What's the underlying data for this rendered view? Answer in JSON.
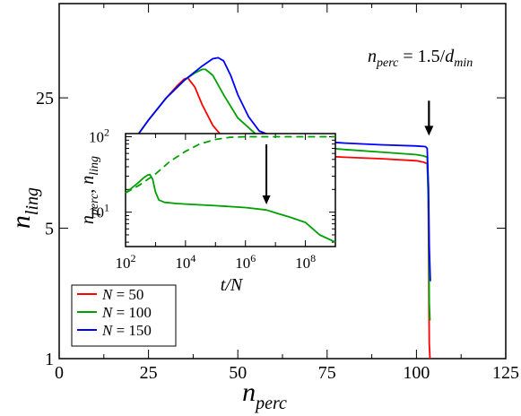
{
  "chart_data": [
    {
      "type": "line",
      "xlabel": "n_perc",
      "ylabel": "n_ling",
      "xlim": [
        0,
        125
      ],
      "ylim": [
        1,
        80
      ],
      "yscale": "log",
      "xticks": [
        0,
        25,
        50,
        75,
        100,
        125
      ],
      "yticks": [
        1,
        5,
        25
      ],
      "legend_position": "bottom-left",
      "annotation": {
        "text": "n_perc = 1.5/d_min",
        "points_to_x": 103.5,
        "points_to_y": 15.5
      },
      "series": [
        {
          "name": "N = 50",
          "color": "#ff0000",
          "x": [
            20,
            25,
            30,
            33,
            35,
            36,
            38,
            40,
            43,
            46,
            50,
            55,
            60,
            70,
            80,
            90,
            100,
            102,
            103,
            103.3,
            103.5,
            103.6,
            103.8
          ],
          "y": [
            14,
            19,
            25,
            29,
            31.5,
            32,
            28.5,
            23,
            17.8,
            15.2,
            14.0,
            13.2,
            12.7,
            12.3,
            12.0,
            11.8,
            11.5,
            11.3,
            11.1,
            8,
            2,
            1.2,
            1
          ]
        },
        {
          "name": "N = 100",
          "color": "#00a000",
          "x": [
            20,
            25,
            30,
            35,
            38,
            40,
            41,
            43,
            46,
            50,
            55,
            60,
            70,
            80,
            90,
            100,
            102,
            103,
            103.4,
            103.6,
            103.8
          ],
          "y": [
            14,
            19,
            25,
            31,
            34,
            35.5,
            35.5,
            33,
            26,
            19.5,
            16,
            14.6,
            13.7,
            13.2,
            12.8,
            12.4,
            12.2,
            12.0,
            6,
            2,
            1.6
          ]
        },
        {
          "name": "N = 150",
          "color": "#0000ff",
          "x": [
            20,
            25,
            30,
            35,
            40,
            43,
            44.5,
            46,
            48,
            50,
            53,
            56,
            60,
            70,
            80,
            90,
            100,
            102.5,
            103,
            103.4,
            103.6,
            103.9
          ],
          "y": [
            14,
            19,
            25,
            31,
            37,
            40.5,
            41,
            39.5,
            33,
            26,
            19.8,
            16.6,
            15.5,
            14.7,
            14.3,
            14.0,
            13.8,
            13.7,
            13.4,
            8,
            4,
            2.6
          ]
        }
      ]
    },
    {
      "type": "line",
      "xlabel": "t/N",
      "ylabel": "n_perc, n_ling",
      "xscale": "log",
      "yscale": "log",
      "xlim": [
        100,
        1000000000
      ],
      "ylim": [
        3.5,
        110
      ],
      "xtick_labels": [
        "10^2",
        "10^4",
        "10^6",
        "10^8"
      ],
      "ytick_labels": [
        "10^1",
        "10^2"
      ],
      "series": [
        {
          "label": "n_perc",
          "style": "dashed",
          "color": "#00a000",
          "x": [
            100,
            300,
            1000,
            3000,
            10000,
            30000,
            100000,
            300000,
            1000000,
            10000000,
            100000000,
            1000000000
          ],
          "y": [
            18,
            23,
            32,
            47,
            64,
            80,
            92,
            98,
            100,
            100,
            100,
            100
          ]
        },
        {
          "label": "n_ling",
          "style": "solid",
          "color": "#00a000",
          "x": [
            100,
            250,
            400,
            550,
            650,
            800,
            1000,
            1300,
            2000,
            5000,
            10000,
            100000,
            1000000,
            5000000,
            10000000,
            30000000,
            100000000,
            300000000,
            1000000000
          ],
          "y": [
            18,
            24,
            28.5,
            31,
            31.5,
            27.5,
            18.5,
            14.5,
            13.5,
            13.0,
            12.8,
            12.2,
            11.5,
            10.7,
            9.8,
            8.6,
            7.3,
            5.0,
            4.0
          ]
        }
      ],
      "arrow": {
        "x": 5000000,
        "y": 12
      }
    }
  ]
}
